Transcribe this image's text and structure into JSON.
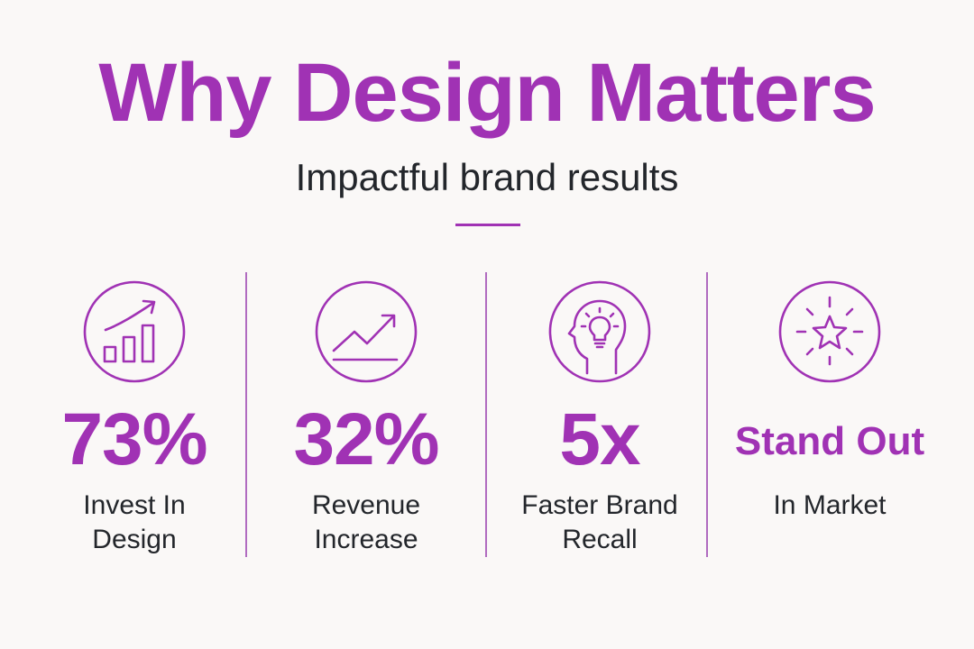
{
  "header": {
    "title": "Why Design Matters",
    "subtitle": "Impactful brand results"
  },
  "accent_color": "#a032b4",
  "text_color": "#23262b",
  "stats": [
    {
      "icon": "growth-bar-chart-icon",
      "value": "73%",
      "label_line1": "Invest In",
      "label_line2": "Design"
    },
    {
      "icon": "trend-arrow-icon",
      "value": "32%",
      "label_line1": "Revenue",
      "label_line2": "Increase"
    },
    {
      "icon": "head-lightbulb-icon",
      "value": "5x",
      "label_line1": "Faster Brand",
      "label_line2": "Recall"
    },
    {
      "icon": "sparkling-star-icon",
      "value": "Stand Out",
      "label_line1": "In Market",
      "label_line2": ""
    }
  ]
}
